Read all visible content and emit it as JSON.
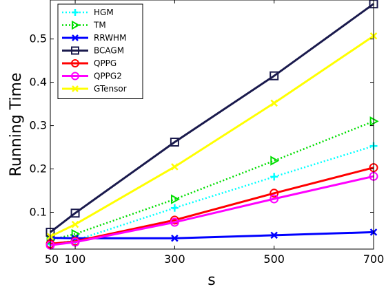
{
  "chart_data": {
    "type": "line",
    "title": "",
    "xlabel": "s",
    "ylabel": "Running Time",
    "x": [
      50,
      100,
      300,
      500,
      700
    ],
    "xticks": [
      50,
      100,
      300,
      500,
      700
    ],
    "yticks": [
      0.1,
      0.2,
      0.3,
      0.4,
      0.5
    ],
    "xlim": [
      50,
      700
    ],
    "ylim": [
      0.015,
      0.59
    ],
    "grid": false,
    "legend": "top-left",
    "series": [
      {
        "name": "HGM",
        "values": [
          0.026,
          0.035,
          0.11,
          0.182,
          0.253
        ],
        "color": "#00ffff",
        "style": "dotted",
        "marker": "plus"
      },
      {
        "name": "TM",
        "values": [
          0.036,
          0.05,
          0.13,
          0.219,
          0.31
        ],
        "color": "#00dd00",
        "style": "dotted",
        "marker": "triangle-right"
      },
      {
        "name": "RRWHM",
        "values": [
          0.041,
          0.04,
          0.04,
          0.047,
          0.054
        ],
        "color": "#0000ff",
        "style": "solid",
        "marker": "x"
      },
      {
        "name": "BCAGM",
        "values": [
          0.054,
          0.098,
          0.262,
          0.415,
          0.581
        ],
        "color": "#1a1a4d",
        "style": "solid",
        "marker": "square"
      },
      {
        "name": "QPPG",
        "values": [
          0.027,
          0.033,
          0.082,
          0.144,
          0.203
        ],
        "color": "#ff0000",
        "style": "solid",
        "marker": "circle"
      },
      {
        "name": "QPPG2",
        "values": [
          0.024,
          0.031,
          0.077,
          0.131,
          0.183
        ],
        "color": "#ff00ff",
        "style": "solid",
        "marker": "circle"
      },
      {
        "name": "GTensor",
        "values": [
          0.044,
          0.072,
          0.205,
          0.352,
          0.507
        ],
        "color": "#ffff00",
        "style": "solid",
        "marker": "x"
      }
    ]
  }
}
